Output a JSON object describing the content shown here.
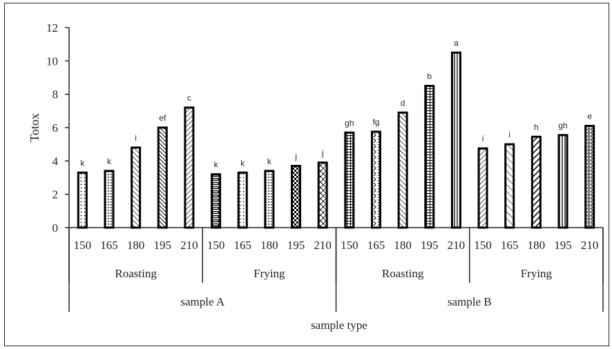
{
  "chart_data": {
    "type": "bar",
    "title": "",
    "ylabel": "Totox",
    "xlabel": "sample type",
    "ylim": [
      0,
      12
    ],
    "yticks": [
      0,
      2,
      4,
      6,
      8,
      10,
      12
    ],
    "grid": false,
    "samples": [
      {
        "name": "sample A",
        "methods": [
          {
            "name": "Roasting",
            "temperatures": [
              "150",
              "165",
              "180",
              "195",
              "210"
            ],
            "values": [
              3.3,
              3.4,
              4.8,
              6.0,
              7.2
            ],
            "letters": [
              "k",
              "k",
              "i",
              "ef",
              "c"
            ],
            "patterns": [
              "dots",
              "grid-dots",
              "hatch-back",
              "hatch-dense",
              "hatch-fwd"
            ]
          },
          {
            "name": "Frying",
            "temperatures": [
              "150",
              "165",
              "180",
              "195",
              "210"
            ],
            "values": [
              3.2,
              3.3,
              3.4,
              3.7,
              3.9
            ],
            "letters": [
              "k",
              "k",
              "k",
              "j",
              "j"
            ],
            "patterns": [
              "bricks",
              "dots",
              "grid-dots",
              "checker",
              "diamond"
            ]
          }
        ]
      },
      {
        "name": "sample B",
        "methods": [
          {
            "name": "Roasting",
            "temperatures": [
              "150",
              "165",
              "180",
              "195",
              "210"
            ],
            "values": [
              5.7,
              5.75,
              6.9,
              8.5,
              10.5
            ],
            "letters": [
              "gh",
              "fg",
              "d",
              "b",
              "a"
            ],
            "patterns": [
              "hgrid",
              "chevron",
              "hatch-back",
              "hgrid",
              "vlines"
            ]
          },
          {
            "name": "Frying",
            "temperatures": [
              "150",
              "165",
              "180",
              "195",
              "210"
            ],
            "values": [
              4.75,
              5.0,
              5.45,
              5.55,
              6.1
            ],
            "letters": [
              "i",
              "i",
              "h",
              "gh",
              "e"
            ],
            "patterns": [
              "hatch-fwd",
              "hatch-back-sparse",
              "hatch-thick",
              "vlines",
              "weave"
            ]
          }
        ]
      }
    ]
  }
}
